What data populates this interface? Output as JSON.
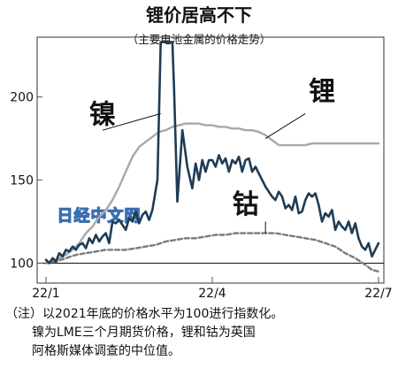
{
  "chart_data": {
    "type": "line",
    "title": "锂价居高不下",
    "subtitle": "（主要电池金属的价格走势）",
    "x_ticks": [
      "22/1",
      "22/4",
      "22/7"
    ],
    "y_ticks": [
      100,
      150,
      200
    ],
    "ylim": [
      88,
      236
    ],
    "baseline": 100,
    "series": [
      {
        "name": "镍",
        "color": "#1f3c55",
        "style": "solid",
        "x": [
          0,
          0.01,
          0.02,
          0.03,
          0.04,
          0.05,
          0.06,
          0.07,
          0.08,
          0.09,
          0.1,
          0.11,
          0.12,
          0.13,
          0.14,
          0.15,
          0.16,
          0.17,
          0.18,
          0.19,
          0.2,
          0.21,
          0.22,
          0.23,
          0.24,
          0.25,
          0.26,
          0.27,
          0.28,
          0.29,
          0.3,
          0.31,
          0.32,
          0.335,
          0.345,
          0.36,
          0.37,
          0.38,
          0.385,
          0.395,
          0.41,
          0.425,
          0.44,
          0.45,
          0.46,
          0.47,
          0.48,
          0.49,
          0.5,
          0.51,
          0.52,
          0.53,
          0.54,
          0.55,
          0.56,
          0.57,
          0.58,
          0.59,
          0.6,
          0.61,
          0.62,
          0.63,
          0.64,
          0.65,
          0.66,
          0.67,
          0.68,
          0.69,
          0.7,
          0.71,
          0.72,
          0.73,
          0.74,
          0.75,
          0.76,
          0.77,
          0.78,
          0.79,
          0.8,
          0.81,
          0.82,
          0.83,
          0.84,
          0.85,
          0.86,
          0.87,
          0.88,
          0.89,
          0.9,
          0.91,
          0.92,
          0.93,
          0.94,
          0.95,
          0.96,
          0.97,
          0.98,
          0.99,
          1.0
        ],
        "values": [
          102,
          100,
          103,
          101,
          106,
          104,
          108,
          107,
          110,
          108,
          111,
          112,
          109,
          115,
          112,
          117,
          113,
          116,
          118,
          112,
          125,
          124,
          126,
          123,
          120,
          127,
          125,
          131,
          124,
          129,
          131,
          126,
          132,
          150,
          233,
          233,
          233,
          233,
          205,
          137,
          180,
          158,
          145,
          160,
          150,
          162,
          155,
          162,
          162,
          158,
          165,
          160,
          163,
          155,
          162,
          160,
          164,
          155,
          162,
          163,
          155,
          158,
          154,
          150,
          146,
          143,
          140,
          138,
          143,
          140,
          133,
          135,
          132,
          140,
          130,
          131,
          138,
          142,
          140,
          142,
          135,
          125,
          130,
          128,
          132,
          120,
          125,
          122,
          120,
          125,
          118,
          124,
          115,
          110,
          108,
          112,
          104,
          108,
          112
        ],
        "label_pos": [
          0.17,
          184
        ]
      },
      {
        "name": "锂",
        "color": "#a8a8a8",
        "style": "solid",
        "x": [
          0,
          0.02,
          0.04,
          0.06,
          0.08,
          0.1,
          0.12,
          0.14,
          0.16,
          0.18,
          0.2,
          0.22,
          0.24,
          0.26,
          0.28,
          0.3,
          0.32,
          0.34,
          0.36,
          0.38,
          0.4,
          0.42,
          0.44,
          0.46,
          0.48,
          0.5,
          0.52,
          0.54,
          0.56,
          0.58,
          0.6,
          0.62,
          0.64,
          0.66,
          0.68,
          0.7,
          0.72,
          0.74,
          0.76,
          0.78,
          0.8,
          0.82,
          0.84,
          0.86,
          0.88,
          0.9,
          0.92,
          0.94,
          0.96,
          0.98,
          1.0
        ],
        "values": [
          100,
          101,
          103,
          105,
          108,
          112,
          118,
          122,
          128,
          132,
          138,
          146,
          155,
          164,
          170,
          173,
          176,
          179,
          180,
          182,
          183,
          184,
          184,
          184,
          183,
          183,
          182,
          182,
          181,
          181,
          180,
          180,
          179,
          177,
          174,
          171,
          171,
          171,
          171,
          171,
          172,
          172,
          172,
          172,
          172,
          172,
          172,
          172,
          172,
          172,
          172
        ],
        "label_pos": [
          0.83,
          198
        ]
      },
      {
        "name": "钴",
        "color": "#7a7a7a",
        "style": "dashed",
        "x": [
          0,
          0.03,
          0.06,
          0.09,
          0.12,
          0.15,
          0.18,
          0.21,
          0.24,
          0.27,
          0.3,
          0.33,
          0.36,
          0.39,
          0.42,
          0.45,
          0.48,
          0.51,
          0.54,
          0.57,
          0.6,
          0.63,
          0.66,
          0.69,
          0.72,
          0.75,
          0.78,
          0.81,
          0.84,
          0.87,
          0.9,
          0.93,
          0.96,
          0.98,
          1.0
        ],
        "values": [
          100,
          101,
          103,
          105,
          106,
          107,
          108,
          108,
          108,
          109,
          110,
          111,
          113,
          114,
          115,
          115,
          116,
          117,
          117,
          118,
          118,
          118,
          118,
          118,
          117,
          116,
          115,
          114,
          112,
          110,
          106,
          103,
          99,
          96,
          95
        ],
        "label_pos": [
          0.6,
          130
        ]
      }
    ],
    "watermark": "日经中文网",
    "grid": false
  },
  "note": {
    "line1": "（注）以2021年底的价格水平为100进行指数化。",
    "line2": "镍为LME三个月期货价格，锂和钴为英国",
    "line3": "阿格斯媒体调查的中位值。"
  }
}
